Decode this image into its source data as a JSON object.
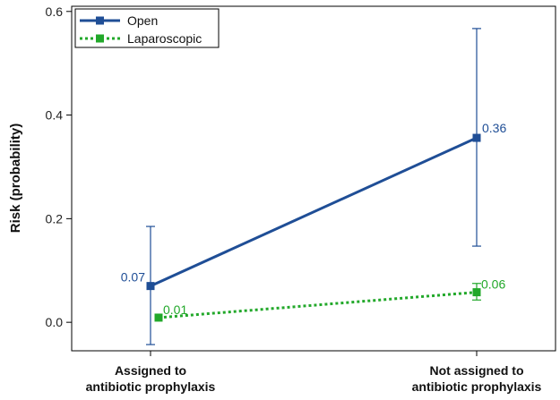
{
  "chart_data": {
    "type": "line",
    "categories": [
      [
        "Assigned to",
        "antibiotic prophylaxis"
      ],
      [
        "Not assigned to",
        "antibiotic prophylaxis"
      ]
    ],
    "ylabel": "Risk (probability)",
    "ylim": [
      -0.055,
      0.61
    ],
    "yticks": [
      0.0,
      0.2,
      0.4,
      0.6
    ],
    "ytick_labels": [
      "0.0",
      "0.2",
      "0.4",
      "0.6"
    ],
    "grid": false,
    "legend_position": "top-left",
    "series": [
      {
        "name": "Open",
        "color": "#1f4e96",
        "line_style": "solid",
        "marker": "square",
        "values": [
          0.07,
          0.356
        ],
        "error_low": [
          -0.043,
          0.147
        ],
        "error_high": [
          0.185,
          0.567
        ],
        "labels": [
          "0.07",
          "0.36"
        ]
      },
      {
        "name": "Laparoscopic",
        "color": "#22a82a",
        "line_style": "dotted",
        "marker": "square",
        "values": [
          0.009,
          0.058
        ],
        "error_low": [
          0.009,
          0.043
        ],
        "error_high": [
          0.009,
          0.075
        ],
        "labels": [
          "0.01",
          "0.06"
        ]
      }
    ]
  }
}
